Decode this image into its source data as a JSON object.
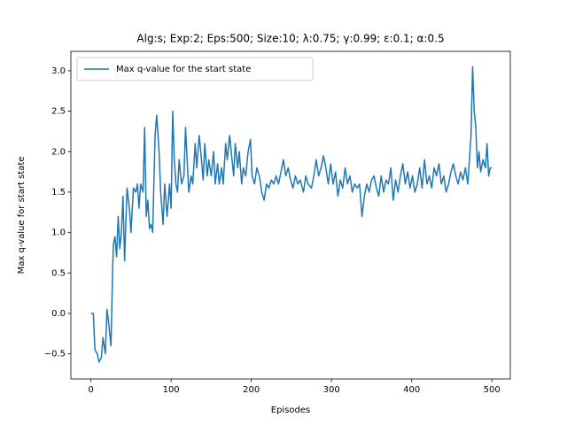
{
  "chart_data": {
    "type": "line",
    "title": "Alg:s; Exp:2; Eps:500; Size:10; λ:0.75; γ:0.99; ε:0.1; α:0.5",
    "x_label": "Episodes",
    "y_label": "Max q-value for start state",
    "legend": "upper left",
    "xlim": [
      -25,
      523
    ],
    "ylim": [
      -0.81,
      3.24
    ],
    "xticks": [
      0,
      100,
      200,
      300,
      400,
      500
    ],
    "yticks": [
      {
        "value": -0.5,
        "label": "−0.5"
      },
      {
        "value": 0,
        "label": "0.0"
      },
      0.5,
      {
        "value": 1,
        "label": "1.0"
      },
      1.5,
      {
        "value": 2,
        "label": "2.0"
      },
      2.5,
      {
        "value": 3,
        "label": "3.0"
      }
    ],
    "x": [
      0,
      3,
      5,
      8,
      10,
      13,
      15,
      18,
      20,
      22,
      25,
      27,
      28,
      30,
      32,
      34,
      36,
      38,
      40,
      42,
      45,
      48,
      50,
      53,
      56,
      58,
      60,
      62,
      65,
      67,
      69,
      71,
      73,
      75,
      77,
      79,
      80,
      82,
      85,
      87,
      90,
      92,
      95,
      98,
      100,
      102,
      104,
      106,
      108,
      110,
      113,
      116,
      118,
      120,
      122,
      125,
      127,
      130,
      132,
      135,
      137,
      140,
      142,
      145,
      147,
      150,
      153,
      155,
      158,
      160,
      163,
      165,
      168,
      170,
      173,
      175,
      178,
      180,
      183,
      185,
      188,
      190,
      193,
      196,
      199,
      201,
      204,
      207,
      210,
      213,
      216,
      219,
      222,
      225,
      228,
      231,
      234,
      237,
      240,
      243,
      246,
      249,
      252,
      255,
      258,
      261,
      265,
      268,
      271,
      275,
      278,
      281,
      284,
      287,
      290,
      293,
      296,
      299,
      302,
      305,
      308,
      311,
      314,
      317,
      320,
      323,
      326,
      329,
      332,
      335,
      338,
      341,
      344,
      347,
      350,
      353,
      356,
      359,
      362,
      365,
      368,
      371,
      374,
      377,
      380,
      383,
      386,
      389,
      392,
      395,
      398,
      401,
      404,
      407,
      410,
      413,
      416,
      419,
      422,
      425,
      428,
      431,
      434,
      437,
      440,
      443,
      446,
      449,
      452,
      455,
      458,
      461,
      464,
      467,
      470,
      472,
      474,
      476,
      478,
      480,
      482,
      484,
      486,
      489,
      492,
      494,
      496,
      498,
      500
    ],
    "series": [
      {
        "name": "Max q-value for the start state",
        "color": "#1f77b4",
        "values": [
          0,
          0,
          -0.45,
          -0.5,
          -0.6,
          -0.55,
          -0.3,
          -0.5,
          0.05,
          -0.1,
          -0.4,
          0.5,
          0.85,
          0.95,
          0.7,
          1.2,
          0.8,
          1.0,
          1.45,
          0.65,
          1.55,
          1.3,
          1.0,
          1.55,
          1.5,
          1.6,
          1.3,
          1.6,
          1.5,
          2.3,
          1.2,
          1.4,
          1.05,
          1.1,
          1.0,
          1.8,
          2.2,
          2.45,
          2.0,
          1.5,
          1.1,
          1.6,
          1.2,
          1.6,
          1.3,
          2.5,
          1.9,
          1.6,
          1.5,
          1.9,
          1.6,
          1.7,
          2.3,
          1.9,
          1.5,
          1.7,
          1.6,
          2.1,
          1.8,
          2.2,
          2.0,
          1.65,
          2.1,
          1.7,
          1.9,
          1.7,
          2.0,
          1.6,
          1.85,
          1.6,
          1.8,
          1.6,
          2.1,
          1.9,
          2.2,
          2.0,
          1.7,
          2.1,
          1.8,
          2.0,
          1.6,
          1.8,
          1.7,
          2.0,
          2.15,
          1.7,
          1.6,
          1.8,
          1.7,
          1.5,
          1.4,
          1.6,
          1.55,
          1.65,
          1.6,
          1.7,
          1.6,
          1.75,
          1.9,
          1.7,
          1.8,
          1.65,
          1.55,
          1.7,
          1.6,
          1.65,
          1.5,
          1.7,
          1.6,
          1.55,
          1.7,
          1.9,
          1.7,
          1.8,
          1.95,
          1.8,
          1.6,
          1.85,
          1.6,
          1.75,
          1.45,
          1.65,
          1.55,
          1.8,
          1.6,
          1.7,
          1.5,
          1.6,
          1.55,
          1.6,
          1.2,
          1.45,
          1.6,
          1.5,
          1.65,
          1.7,
          1.55,
          1.45,
          1.7,
          1.5,
          1.65,
          1.6,
          1.8,
          1.4,
          1.65,
          1.5,
          1.7,
          1.85,
          1.6,
          1.75,
          1.55,
          1.7,
          1.5,
          1.6,
          1.8,
          1.55,
          1.9,
          1.6,
          1.7,
          1.55,
          1.8,
          1.7,
          1.85,
          1.6,
          1.7,
          1.5,
          1.6,
          1.75,
          1.85,
          1.7,
          1.6,
          1.75,
          1.65,
          1.8,
          1.6,
          1.9,
          2.2,
          3.05,
          2.5,
          2.3,
          1.8,
          2.0,
          1.75,
          1.9,
          1.8,
          2.1,
          1.7,
          1.8,
          1.8
        ]
      }
    ]
  }
}
